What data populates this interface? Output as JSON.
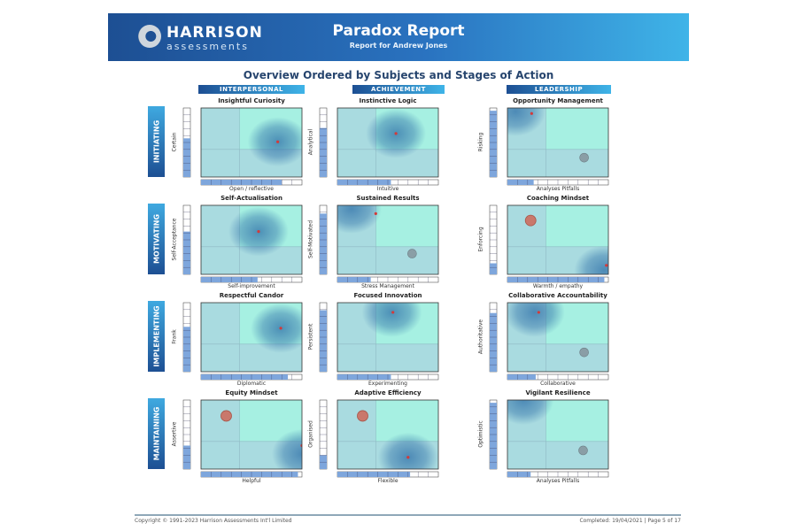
{
  "header": {
    "logo_main": "HARRISON",
    "logo_sub": "assessments",
    "title": "Paradox Report",
    "subtitle": "Report for Andrew Jones"
  },
  "overview_title": "Overview Ordered by Subjects and Stages of Action",
  "subjects": [
    "INTERPERSONAL",
    "ACHIEVEMENT",
    "LEADERSHIP"
  ],
  "stages": [
    "INITIATING",
    "MOTIVATING",
    "IMPLEMENTING",
    "MAINTAINING"
  ],
  "colors": {
    "quadrant_main": "#a6f0e2",
    "quadrant_other": "#a9dbe0",
    "bar": "#7ea6dc",
    "blob": "#2e6fa8"
  },
  "charts": [
    {
      "title": "Insightful Curiosity",
      "xlabel": "Open / reflective",
      "ylabel": "Certain",
      "x_score": 8.0,
      "y_score": 5.6,
      "blob": [
        7.6,
        5.1
      ],
      "dot": [
        7.6,
        5.1
      ]
    },
    {
      "title": "Instinctive Logic",
      "xlabel": "Intuitive",
      "ylabel": "Analytical",
      "x_score": 5.3,
      "y_score": 7.1,
      "blob": [
        5.8,
        6.3
      ],
      "dot": [
        5.8,
        6.3
      ]
    },
    {
      "title": "Opportunity Management",
      "xlabel": "Analyses Pitfalls",
      "ylabel": "Risking",
      "x_score": 2.6,
      "y_score": 9.6,
      "blob": [
        0.8,
        9.5
      ],
      "dot": [
        2.4,
        9.2
      ],
      "shadow": [
        7.6,
        2.8
      ]
    },
    {
      "title": "Self-Actualisation",
      "xlabel": "Self-improvement",
      "ylabel": "Self-Acceptance",
      "x_score": 5.6,
      "y_score": 6.2,
      "blob": [
        5.7,
        6.2
      ],
      "dot": [
        5.7,
        6.2
      ]
    },
    {
      "title": "Sustained Results",
      "xlabel": "Stress Management",
      "ylabel": "Self-Motivated",
      "x_score": 3.3,
      "y_score": 8.8,
      "blob": [
        1.4,
        9.5
      ],
      "dot": [
        3.8,
        8.8
      ],
      "shadow": [
        7.4,
        3.0
      ]
    },
    {
      "title": "Coaching Mindset",
      "xlabel": "Warmth / empathy",
      "ylabel": "Enforcing",
      "x_score": 9.6,
      "y_score": 1.6,
      "blob": [
        9.6,
        0.6
      ],
      "dot": [
        9.8,
        1.3
      ],
      "red_target": [
        2.3,
        7.8
      ]
    },
    {
      "title": "Respectful Candor",
      "xlabel": "Diplomatic",
      "ylabel": "Frank",
      "x_score": 8.6,
      "y_score": 6.5,
      "blob": [
        7.9,
        6.3
      ],
      "dot": [
        7.9,
        6.3
      ]
    },
    {
      "title": "Focused Innovation",
      "xlabel": "Experimenting",
      "ylabel": "Persistent",
      "x_score": 5.3,
      "y_score": 8.9,
      "blob": [
        5.4,
        8.6
      ],
      "dot": [
        5.5,
        8.6
      ]
    },
    {
      "title": "Collaborative Accountability",
      "xlabel": "Collaborative",
      "ylabel": "Authoritative",
      "x_score": 2.8,
      "y_score": 8.5,
      "blob": [
        2.7,
        8.6
      ],
      "dot": [
        3.1,
        8.6
      ],
      "shadow": [
        7.6,
        2.8
      ]
    },
    {
      "title": "Equity Mindset",
      "xlabel": "Helpful",
      "ylabel": "Assertive",
      "x_score": 9.6,
      "y_score": 3.4,
      "blob": [
        10,
        2.2
      ],
      "dot": [
        10,
        3.4
      ],
      "red_target": [
        2.5,
        7.7
      ]
    },
    {
      "title": "Adaptive Efficiency",
      "xlabel": "Flexible",
      "ylabel": "Organised",
      "x_score": 7.2,
      "y_score": 2.0,
      "blob": [
        7.0,
        1.7
      ],
      "dot": [
        7.0,
        1.7
      ],
      "red_target": [
        2.5,
        7.7
      ]
    },
    {
      "title": "Vigilant Resilience",
      "xlabel": "Analyses Pitfalls",
      "ylabel": "Optimistic",
      "x_score": 2.3,
      "y_score": 9.6,
      "blob": [
        1.6,
        10
      ],
      "shadow": [
        7.5,
        2.7
      ]
    }
  ],
  "footer": {
    "copyright": "Copyright © 1991-2023 Harrison Assessments Int'l Limited",
    "completed": "Completed: 19/04/2021 | Page 5 of 17"
  }
}
